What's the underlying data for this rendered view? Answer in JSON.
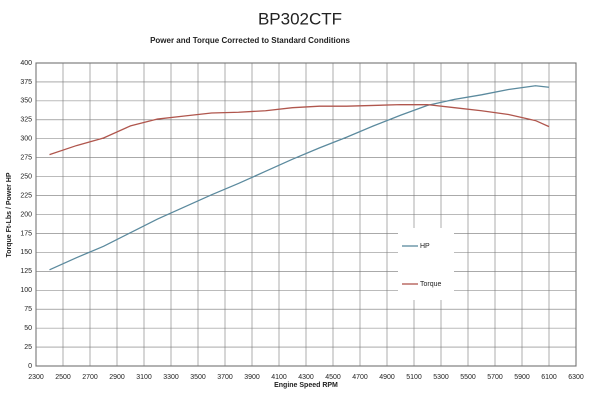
{
  "chart_data": {
    "type": "line",
    "title": "BP302CTF",
    "subtitle": "Power and Torque Corrected to Standard Conditions",
    "x_label": "Engine Speed RPM",
    "y_label": "Torque Ft-Lbs / Power HP",
    "x": [
      2400,
      2600,
      2800,
      3000,
      3200,
      3400,
      3600,
      3800,
      4000,
      4200,
      4400,
      4600,
      4800,
      5000,
      5200,
      5400,
      5600,
      5800,
      6000,
      6100
    ],
    "series": [
      {
        "name": "HP",
        "color": "#5b8a9e",
        "values": [
          127,
          143,
          158,
          176,
          194,
          210,
          226,
          241,
          257,
          273,
          288,
          302,
          317,
          331,
          344,
          352,
          358,
          365,
          370,
          368
        ]
      },
      {
        "name": "Torque",
        "color": "#b0564d",
        "values": [
          279,
          291,
          301,
          317,
          326,
          330,
          334,
          335,
          337,
          341,
          343,
          343,
          344,
          345,
          345,
          341,
          337,
          332,
          324,
          316
        ]
      }
    ],
    "xlim": [
      2300,
      6300
    ],
    "xticks": [
      2300,
      2500,
      2700,
      2900,
      3100,
      3300,
      3500,
      3700,
      3900,
      4100,
      4300,
      4500,
      4700,
      4900,
      5100,
      5300,
      5500,
      5700,
      5900,
      6100,
      6300
    ],
    "ylim": [
      0,
      400
    ],
    "yticks": [
      0,
      25,
      50,
      75,
      100,
      125,
      150,
      175,
      200,
      225,
      250,
      275,
      300,
      325,
      350,
      375,
      400
    ],
    "grid": true,
    "legend": "right"
  }
}
